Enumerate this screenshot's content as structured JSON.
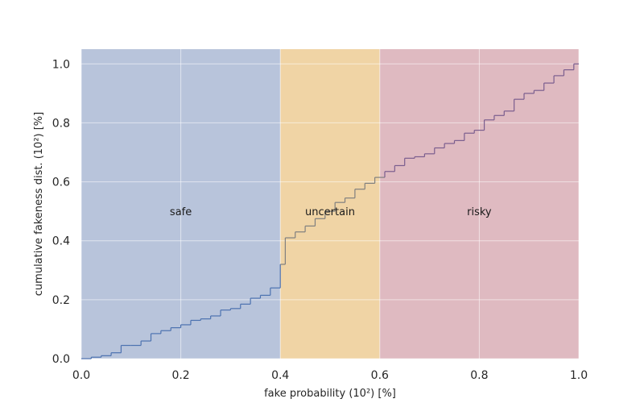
{
  "chart_data": {
    "type": "line",
    "title": "",
    "xlabel": "fake probability (10²) [%]",
    "ylabel": "cumulative fakeness dist. (10²) [%]",
    "xlim": [
      0.0,
      1.0
    ],
    "ylim": [
      0.0,
      1.05
    ],
    "xticks": [
      {
        "value": 0.0,
        "label": "0.0"
      },
      {
        "value": 0.2,
        "label": "0.2"
      },
      {
        "value": 0.4,
        "label": "0.4"
      },
      {
        "value": 0.6,
        "label": "0.6"
      },
      {
        "value": 0.8,
        "label": "0.8"
      },
      {
        "value": 1.0,
        "label": "1.0"
      }
    ],
    "yticks": [
      {
        "value": 0.0,
        "label": "0.0"
      },
      {
        "value": 0.2,
        "label": "0.2"
      },
      {
        "value": 0.4,
        "label": "0.4"
      },
      {
        "value": 0.6,
        "label": "0.6"
      },
      {
        "value": 0.8,
        "label": "0.8"
      },
      {
        "value": 1.0,
        "label": "1.0"
      }
    ],
    "grid": true,
    "regions": [
      {
        "label": "safe",
        "x_start": 0.0,
        "x_end": 0.4,
        "color": "#b8c4db"
      },
      {
        "label": "uncertain",
        "x_start": 0.4,
        "x_end": 0.6,
        "color": "#f0d4a5"
      },
      {
        "label": "risky",
        "x_start": 0.6,
        "x_end": 1.0,
        "color": "#dfbac1"
      }
    ],
    "region_label_y": 0.5,
    "series": [
      {
        "style": "step-post",
        "colors": {
          "safe": "#4c72b0",
          "uncertain": "#7f7f7f",
          "risky": "#7a5d8e"
        },
        "x": [
          0.0,
          0.02,
          0.04,
          0.06,
          0.08,
          0.1,
          0.12,
          0.14,
          0.16,
          0.18,
          0.2,
          0.22,
          0.24,
          0.26,
          0.28,
          0.3,
          0.32,
          0.34,
          0.36,
          0.38,
          0.4,
          0.41,
          0.43,
          0.45,
          0.47,
          0.49,
          0.51,
          0.53,
          0.55,
          0.57,
          0.59,
          0.61,
          0.63,
          0.65,
          0.67,
          0.69,
          0.71,
          0.73,
          0.75,
          0.77,
          0.79,
          0.81,
          0.83,
          0.85,
          0.87,
          0.89,
          0.91,
          0.93,
          0.95,
          0.97,
          0.99,
          1.0
        ],
        "y": [
          0.0,
          0.005,
          0.01,
          0.02,
          0.045,
          0.045,
          0.06,
          0.085,
          0.095,
          0.105,
          0.115,
          0.13,
          0.135,
          0.145,
          0.165,
          0.17,
          0.185,
          0.205,
          0.215,
          0.24,
          0.32,
          0.41,
          0.43,
          0.45,
          0.475,
          0.5,
          0.53,
          0.545,
          0.575,
          0.595,
          0.615,
          0.635,
          0.655,
          0.68,
          0.685,
          0.695,
          0.715,
          0.73,
          0.74,
          0.765,
          0.775,
          0.81,
          0.825,
          0.84,
          0.88,
          0.9,
          0.91,
          0.935,
          0.96,
          0.98,
          1.0,
          1.0
        ]
      }
    ]
  }
}
